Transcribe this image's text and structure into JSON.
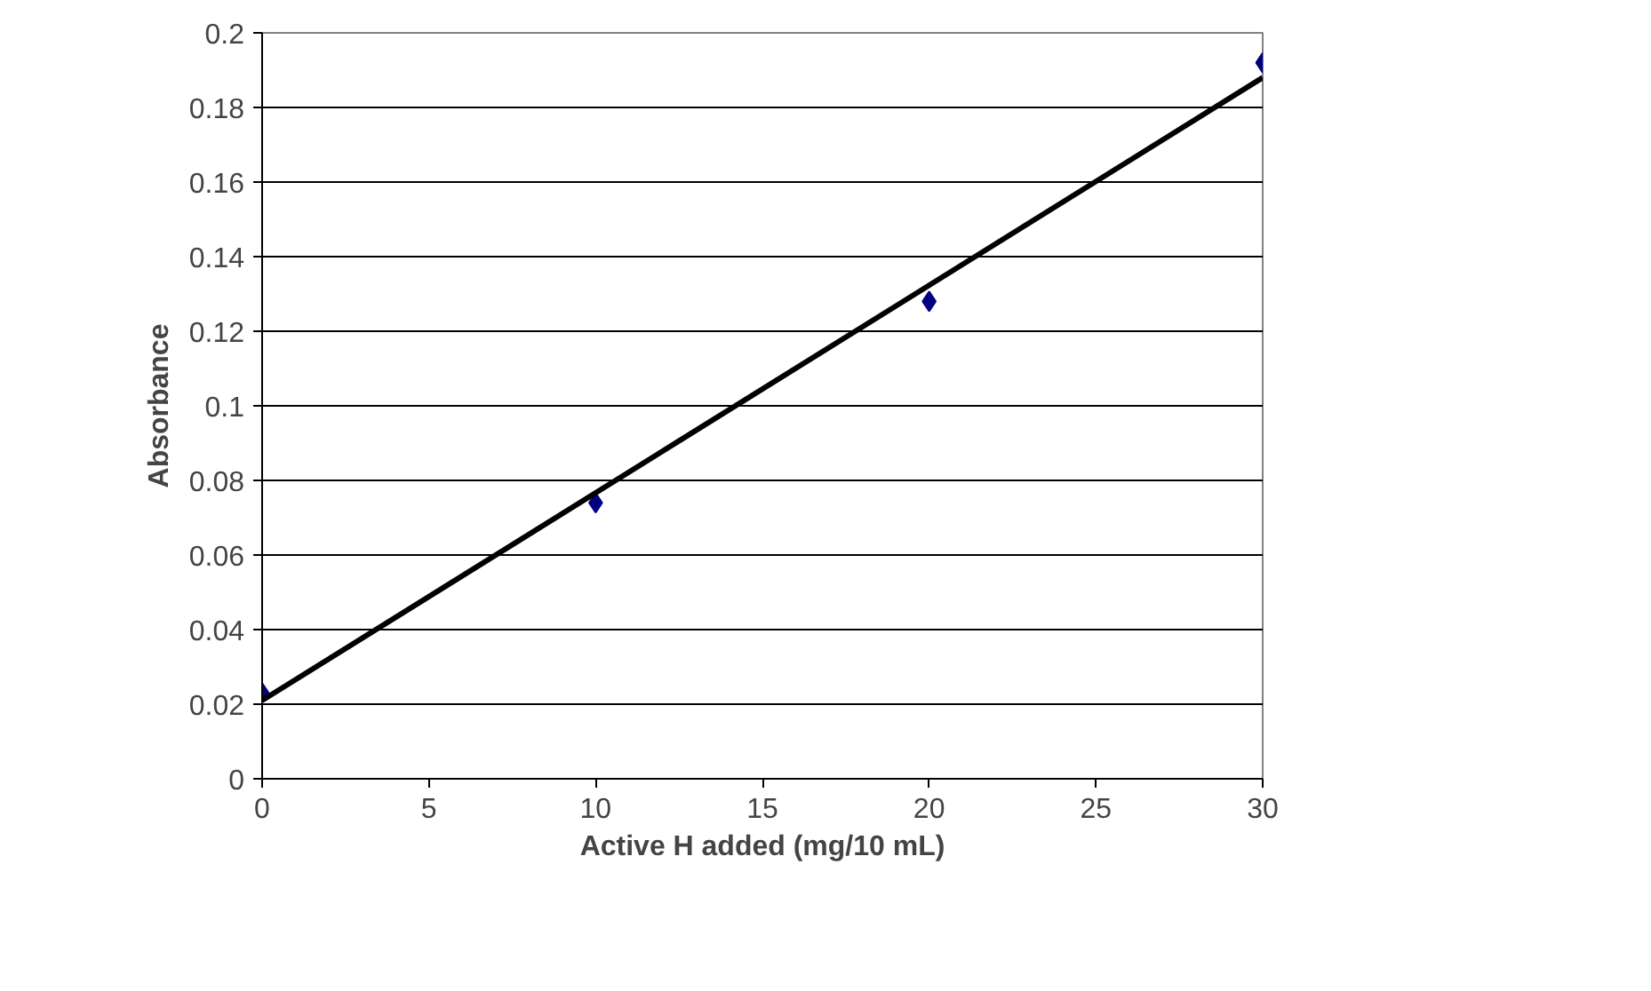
{
  "chart_data": {
    "type": "scatter",
    "xlabel": "Active H added (mg/10 mL)",
    "ylabel": "Absorbance",
    "x": [
      0,
      10,
      20,
      30
    ],
    "series": [
      {
        "color": "#000080",
        "values": [
          0.023,
          0.074,
          0.128,
          0.192
        ],
        "marker": "diamond"
      },
      {
        "type": "line",
        "color": "#000000",
        "x": [
          0,
          30
        ],
        "values": [
          0.021,
          0.188
        ],
        "line_style": "solid"
      }
    ],
    "xlim": [
      0,
      30
    ],
    "ylim": [
      0,
      0.2
    ],
    "xticks": [
      0,
      5,
      10,
      15,
      20,
      25,
      30
    ],
    "yticks": [
      0,
      0.02,
      0.04,
      0.06,
      0.08,
      0.1,
      0.12,
      0.14,
      0.16,
      0.18,
      0.2
    ],
    "grid": "y"
  }
}
